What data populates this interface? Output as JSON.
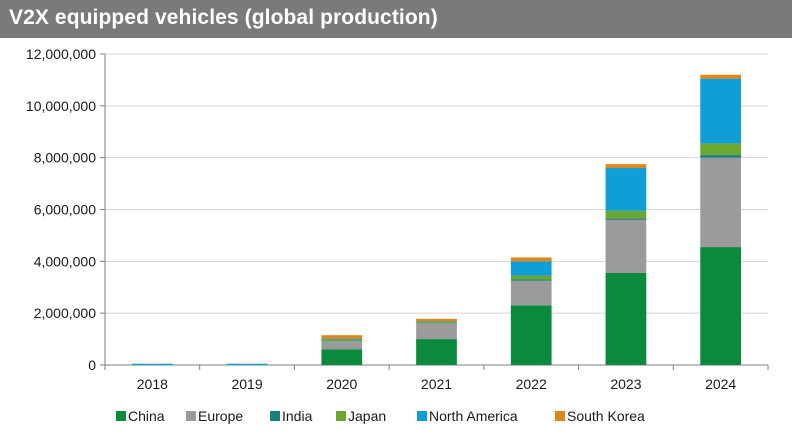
{
  "title": "V2X equipped vehicles (global production)",
  "chart_data": {
    "type": "bar",
    "stacked": true,
    "title": "V2X equipped vehicles (global production)",
    "xlabel": "",
    "ylabel": "",
    "ylim": [
      0,
      12000000
    ],
    "yticks": [
      0,
      2000000,
      4000000,
      6000000,
      8000000,
      10000000,
      12000000
    ],
    "ytick_labels": [
      "0",
      "2,000,000",
      "4,000,000",
      "6,000,000",
      "8,000,000",
      "10,000,000",
      "12,000,000"
    ],
    "categories": [
      "2018",
      "2019",
      "2020",
      "2021",
      "2022",
      "2023",
      "2024"
    ],
    "grid": true,
    "legend_position": "bottom",
    "series": [
      {
        "name": "China",
        "color": "#0a8a3c",
        "values": [
          0,
          0,
          600000,
          1000000,
          2300000,
          3550000,
          4550000
        ]
      },
      {
        "name": "Europe",
        "color": "#9b9b9b",
        "values": [
          0,
          0,
          300000,
          600000,
          950000,
          2050000,
          3450000
        ]
      },
      {
        "name": "India",
        "color": "#1a7f80",
        "values": [
          0,
          0,
          0,
          0,
          50000,
          50000,
          100000
        ]
      },
      {
        "name": "Japan",
        "color": "#6aa832",
        "values": [
          0,
          0,
          50000,
          50000,
          150000,
          300000,
          450000
        ]
      },
      {
        "name": "North America",
        "color": "#0f9ed8",
        "values": [
          50000,
          50000,
          50000,
          30000,
          550000,
          1650000,
          2500000
        ]
      },
      {
        "name": "South Korea",
        "color": "#e0861a",
        "values": [
          0,
          0,
          150000,
          100000,
          150000,
          150000,
          150000
        ]
      }
    ]
  }
}
